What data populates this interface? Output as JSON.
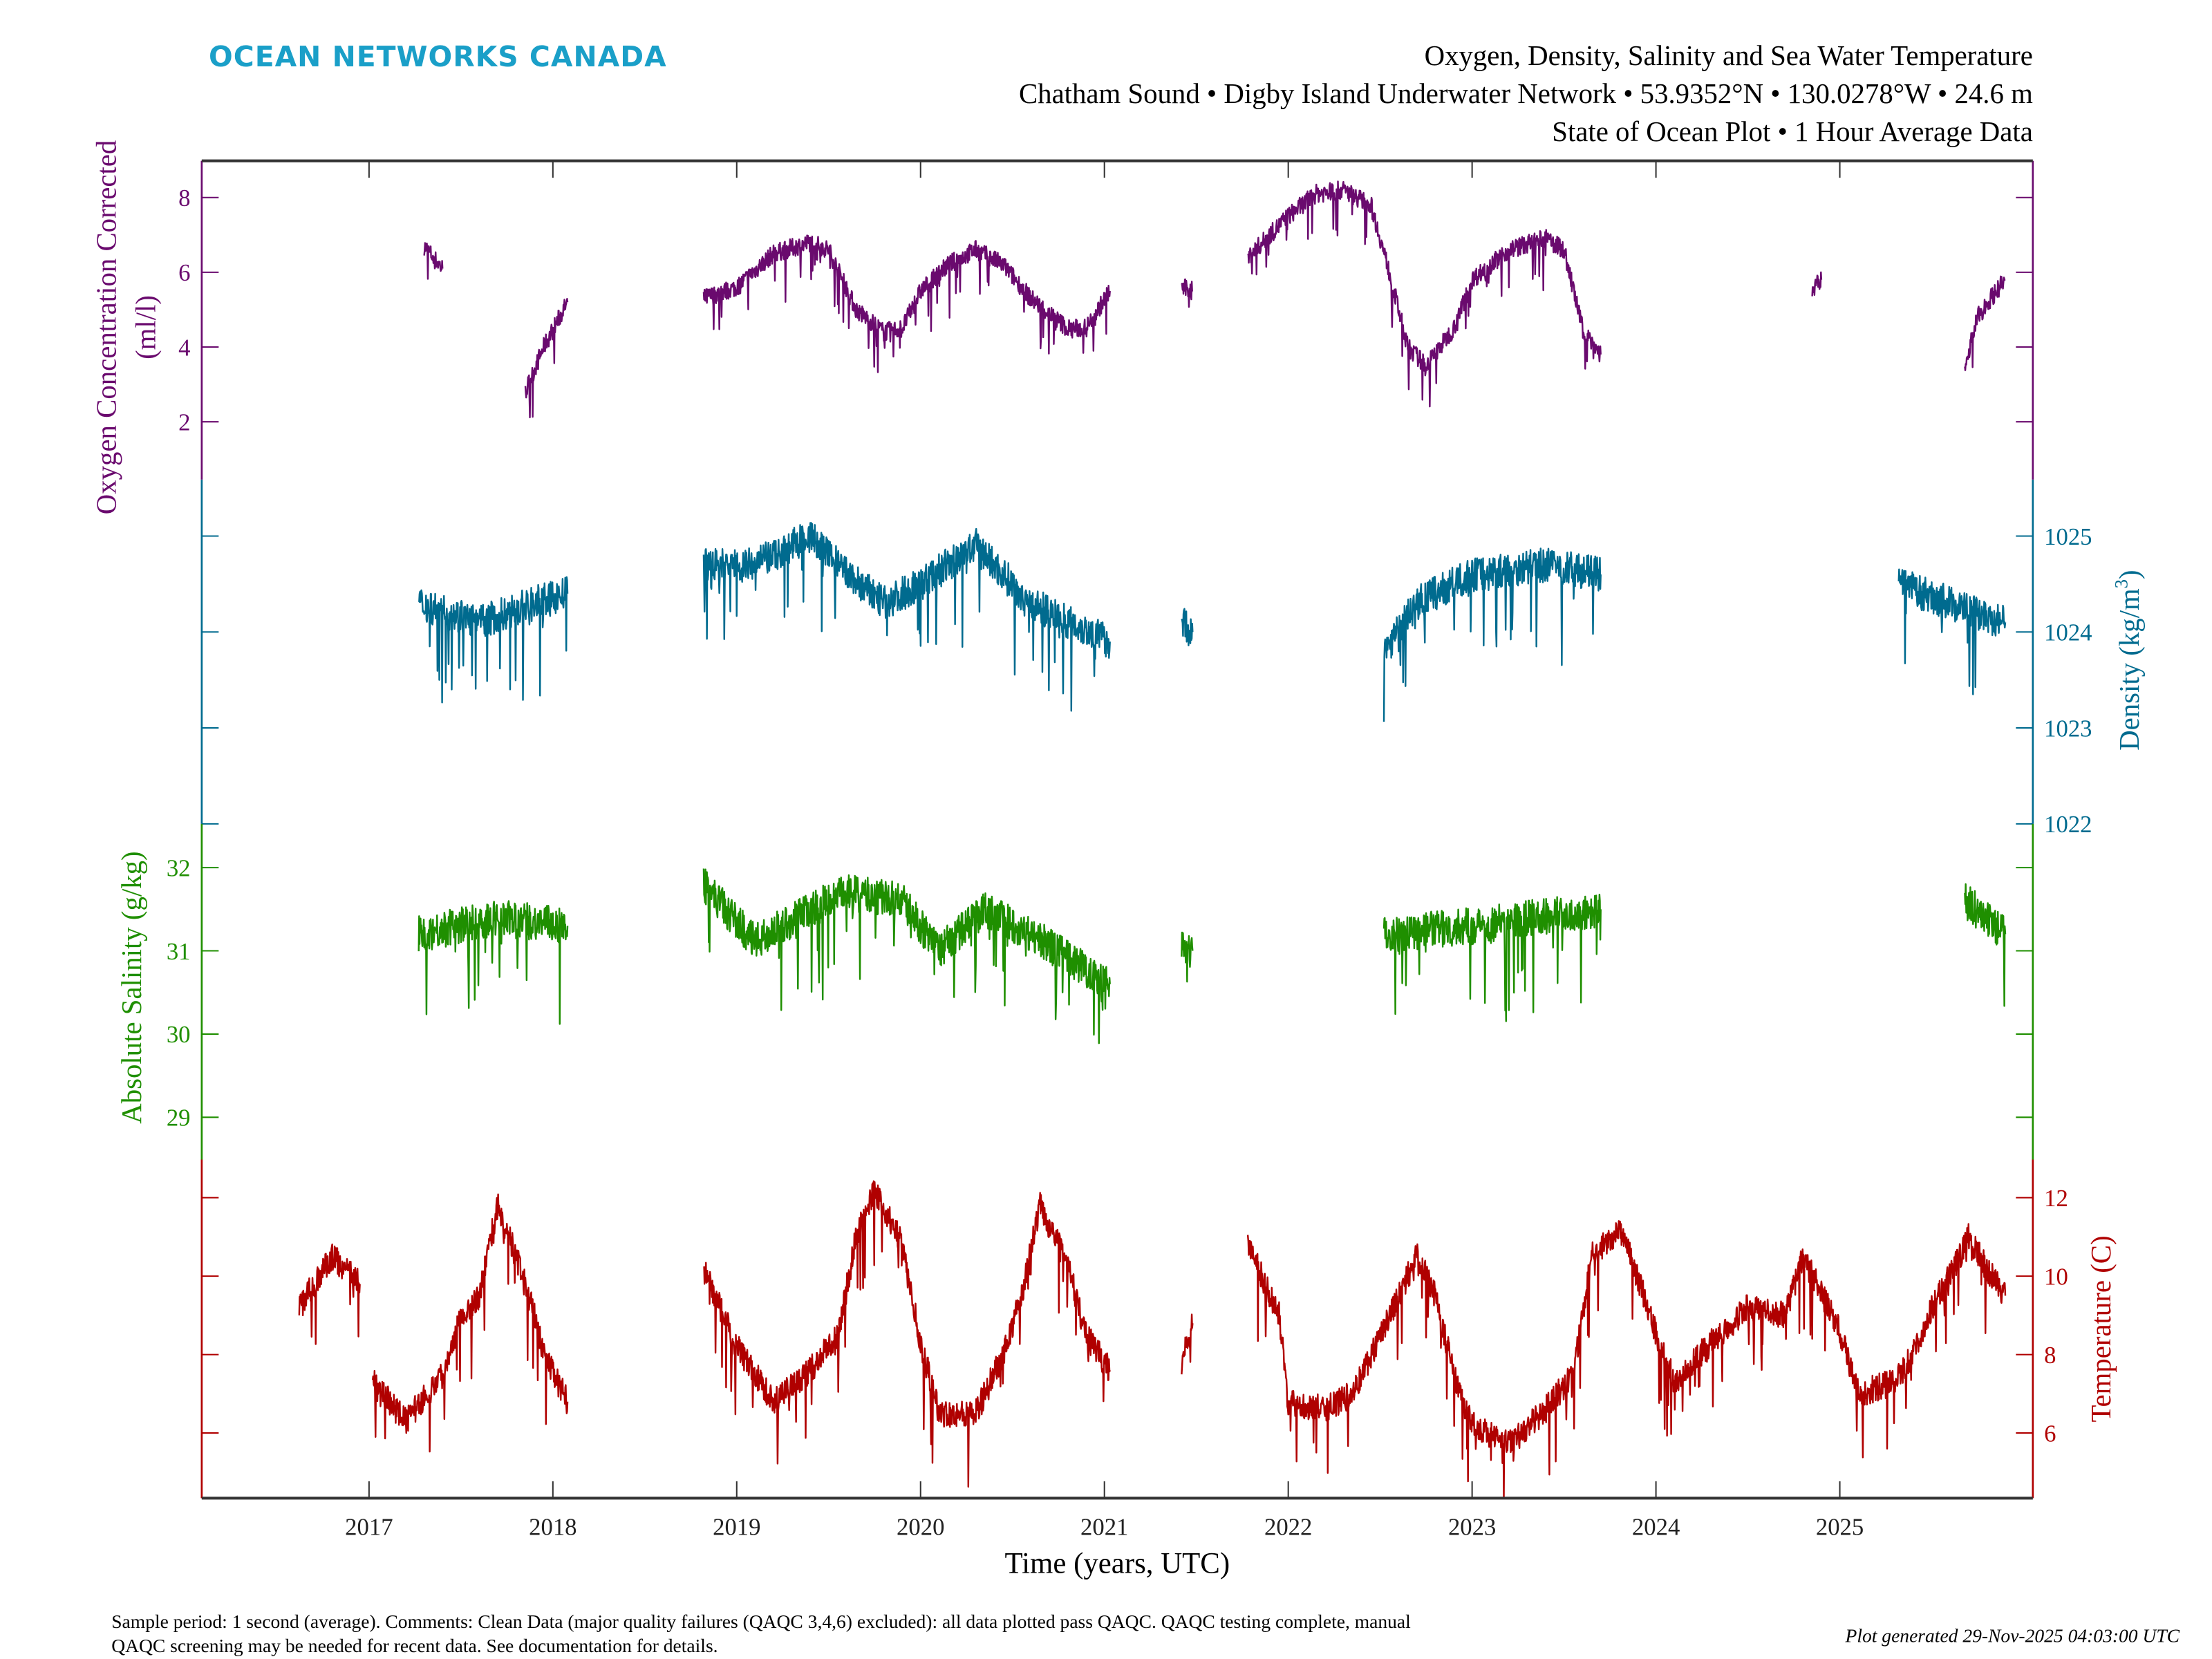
{
  "header": {
    "brand": "OCEAN NETWORKS CANADA",
    "title": "Oxygen, Density, Salinity and Sea Water Temperature",
    "subtitle": "Chatham Sound • Digby Island Underwater Network • 53.9352°N • 130.0278°W • 24.6 m",
    "subtitle2": "State of Ocean Plot • 1 Hour Average Data"
  },
  "footer": {
    "comment_line1": "Sample period: 1 second (average). Comments: Clean Data (major quality failures (QAQC 3,4,6) excluded): all data plotted pass QAQC. QAQC testing complete, manual",
    "comment_line2": "QAQC screening may be needed for recent data. See documentation for details.",
    "generated": "Plot generated 29-Nov-2025 04:03:00 UTC"
  },
  "colors": {
    "brand": "#1a9fc8",
    "oxygen": "#6a0a6e",
    "density": "#006b8f",
    "salinity": "#1f8f00",
    "temperature": "#b00000",
    "axis": "#333333"
  },
  "chart_data": {
    "type": "line",
    "xlabel": "Time (years, UTC)",
    "xticks": [
      "2017",
      "2018",
      "2019",
      "2020",
      "2021",
      "2022",
      "2023",
      "2024",
      "2025"
    ],
    "xlim": [
      2016.09,
      2026.05
    ],
    "grid": false,
    "series": [
      {
        "key": "oxygen",
        "ylabel": "Oxygen Concentration Corrected (ml/l)",
        "ylabel_line1": "Oxygen Concentration Corrected",
        "ylabel_line2": "(ml/l)",
        "axis": "left",
        "yticks": [
          2,
          4,
          6,
          8
        ],
        "segments": [
          [
            [
              2017.3,
              6.7
            ],
            [
              2017.4,
              6.1
            ]
          ],
          [
            [
              2017.85,
              2.8
            ],
            [
              2017.95,
              4.0
            ],
            [
              2018.08,
              5.2
            ]
          ],
          [
            [
              2018.82,
              5.3
            ],
            [
              2019.0,
              5.6
            ],
            [
              2019.2,
              6.5
            ],
            [
              2019.4,
              6.8
            ],
            [
              2019.5,
              6.6
            ],
            [
              2019.65,
              5.0
            ],
            [
              2019.8,
              4.4
            ],
            [
              2019.9,
              4.5
            ],
            [
              2020.0,
              5.5
            ],
            [
              2020.15,
              6.2
            ],
            [
              2020.3,
              6.6
            ],
            [
              2020.45,
              6.2
            ],
            [
              2020.6,
              5.3
            ],
            [
              2020.8,
              4.5
            ],
            [
              2020.9,
              4.5
            ],
            [
              2021.03,
              5.5
            ]
          ],
          [
            [
              2021.42,
              5.6
            ],
            [
              2021.48,
              5.5
            ]
          ],
          [
            [
              2021.78,
              6.4
            ],
            [
              2022.0,
              7.5
            ],
            [
              2022.15,
              8.1
            ],
            [
              2022.3,
              8.2
            ],
            [
              2022.45,
              7.8
            ],
            [
              2022.55,
              6.0
            ],
            [
              2022.65,
              4.0
            ],
            [
              2022.75,
              3.5
            ],
            [
              2022.9,
              4.5
            ],
            [
              2023.0,
              5.8
            ],
            [
              2023.2,
              6.6
            ],
            [
              2023.4,
              6.9
            ],
            [
              2023.5,
              6.6
            ],
            [
              2023.6,
              4.5
            ],
            [
              2023.7,
              3.8
            ]
          ],
          [
            [
              2024.85,
              5.5
            ],
            [
              2024.9,
              5.8
            ]
          ],
          [
            [
              2025.68,
              3.5
            ],
            [
              2025.75,
              4.8
            ],
            [
              2025.82,
              5.3
            ],
            [
              2025.9,
              5.8
            ]
          ]
        ]
      },
      {
        "key": "density",
        "ylabel": "Density (kg/m³)",
        "ylabel_text": "Density (kg/m",
        "ylabel_sup": "3",
        "ylabel_close": ")",
        "axis": "right",
        "yticks": [
          1022,
          1023,
          1024,
          1025
        ],
        "segments": [
          [
            [
              2017.27,
              1024.3
            ],
            [
              2017.6,
              1024.1
            ],
            [
              2017.9,
              1024.3
            ],
            [
              2018.08,
              1024.4
            ]
          ],
          [
            [
              2018.82,
              1024.7
            ],
            [
              2019.1,
              1024.7
            ],
            [
              2019.4,
              1025.0
            ],
            [
              2019.6,
              1024.6
            ],
            [
              2019.8,
              1024.3
            ],
            [
              2020.0,
              1024.5
            ],
            [
              2020.3,
              1024.9
            ],
            [
              2020.6,
              1024.3
            ],
            [
              2021.03,
              1023.9
            ]
          ],
          [
            [
              2021.42,
              1024.1
            ],
            [
              2021.48,
              1024.0
            ]
          ],
          [
            [
              2022.52,
              1023.8
            ],
            [
              2022.7,
              1024.3
            ],
            [
              2023.0,
              1024.6
            ],
            [
              2023.4,
              1024.7
            ],
            [
              2023.7,
              1024.6
            ]
          ],
          [
            [
              2025.32,
              1024.5
            ],
            [
              2025.6,
              1024.3
            ],
            [
              2025.9,
              1024.1
            ]
          ]
        ]
      },
      {
        "key": "salinity",
        "ylabel": "Absolute Salinity (g/kg)",
        "axis": "left",
        "yticks": [
          29,
          30,
          31,
          32
        ],
        "segments": [
          [
            [
              2017.27,
              31.2
            ],
            [
              2017.7,
              31.4
            ],
            [
              2018.08,
              31.3
            ]
          ],
          [
            [
              2018.82,
              31.8
            ],
            [
              2019.1,
              31.1
            ],
            [
              2019.4,
              31.5
            ],
            [
              2019.6,
              31.7
            ],
            [
              2019.9,
              31.6
            ],
            [
              2020.1,
              31.0
            ],
            [
              2020.35,
              31.5
            ],
            [
              2020.6,
              31.2
            ],
            [
              2021.03,
              30.6
            ]
          ],
          [
            [
              2021.42,
              31.1
            ],
            [
              2021.48,
              31.0
            ]
          ],
          [
            [
              2022.52,
              31.2
            ],
            [
              2023.0,
              31.3
            ],
            [
              2023.7,
              31.5
            ]
          ],
          [
            [
              2025.68,
              31.6
            ],
            [
              2025.9,
              31.2
            ]
          ]
        ]
      },
      {
        "key": "temperature",
        "ylabel": "Temperature (C)",
        "axis": "right",
        "yticks": [
          6,
          8,
          10,
          12
        ],
        "segments": [
          [
            [
              2016.62,
              9.2
            ],
            [
              2016.8,
              10.5
            ],
            [
              2016.95,
              9.8
            ]
          ],
          [
            [
              2017.02,
              7.3
            ],
            [
              2017.2,
              6.3
            ],
            [
              2017.4,
              7.5
            ],
            [
              2017.5,
              9.0
            ],
            [
              2017.6,
              9.5
            ],
            [
              2017.7,
              11.8
            ],
            [
              2017.8,
              10.5
            ],
            [
              2017.9,
              9.0
            ],
            [
              2017.95,
              8.0
            ],
            [
              2018.08,
              6.8
            ]
          ],
          [
            [
              2018.82,
              10.2
            ],
            [
              2019.0,
              8.2
            ],
            [
              2019.2,
              6.8
            ],
            [
              2019.4,
              7.6
            ],
            [
              2019.55,
              8.5
            ],
            [
              2019.65,
              11.0
            ],
            [
              2019.75,
              12.2
            ],
            [
              2019.9,
              10.8
            ],
            [
              2020.0,
              8.3
            ],
            [
              2020.1,
              6.5
            ],
            [
              2020.3,
              6.5
            ],
            [
              2020.45,
              8.0
            ],
            [
              2020.55,
              9.5
            ],
            [
              2020.65,
              11.8
            ],
            [
              2020.8,
              10.3
            ],
            [
              2020.9,
              8.5
            ],
            [
              2021.03,
              7.6
            ]
          ],
          [
            [
              2021.42,
              7.8
            ],
            [
              2021.48,
              8.8
            ]
          ],
          [
            [
              2021.78,
              10.8
            ],
            [
              2021.95,
              9.0
            ],
            [
              2022.0,
              6.8
            ],
            [
              2022.2,
              6.6
            ],
            [
              2022.35,
              7.0
            ],
            [
              2022.45,
              8.0
            ],
            [
              2022.55,
              9.0
            ],
            [
              2022.7,
              10.5
            ],
            [
              2022.8,
              9.5
            ],
            [
              2022.9,
              7.5
            ],
            [
              2023.0,
              6.2
            ],
            [
              2023.2,
              5.7
            ],
            [
              2023.4,
              6.6
            ],
            [
              2023.55,
              7.5
            ],
            [
              2023.65,
              10.5
            ],
            [
              2023.8,
              11.2
            ],
            [
              2023.9,
              10.0
            ],
            [
              2024.0,
              8.5
            ],
            [
              2024.1,
              7.3
            ],
            [
              2024.3,
              8.3
            ],
            [
              2024.5,
              9.2
            ],
            [
              2024.7,
              9.0
            ],
            [
              2024.8,
              10.5
            ],
            [
              2025.0,
              8.6
            ],
            [
              2025.1,
              7.0
            ],
            [
              2025.3,
              7.3
            ],
            [
              2025.4,
              8.0
            ],
            [
              2025.5,
              9.2
            ],
            [
              2025.6,
              10.0
            ],
            [
              2025.7,
              11.0
            ],
            [
              2025.8,
              10.2
            ],
            [
              2025.9,
              9.5
            ]
          ]
        ]
      }
    ]
  }
}
